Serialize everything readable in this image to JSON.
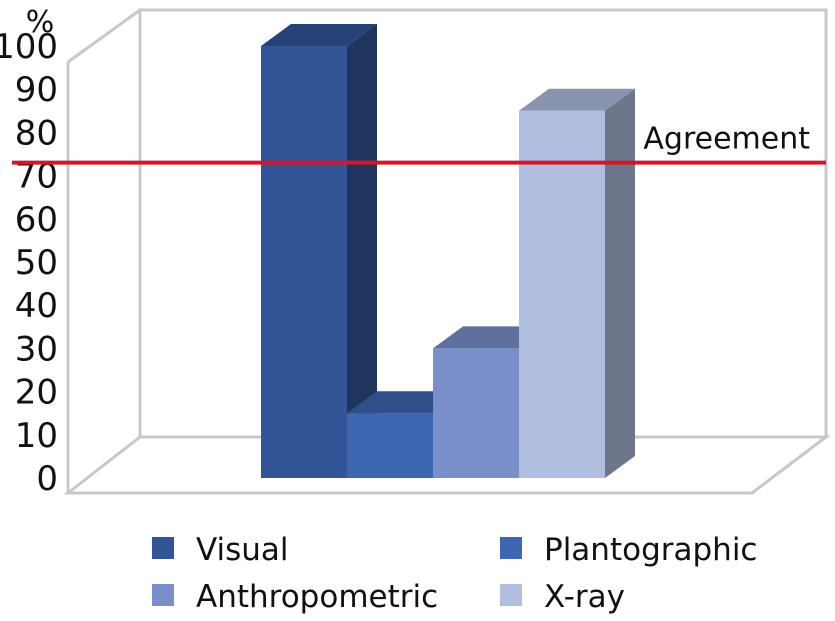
{
  "chart_data": {
    "type": "bar",
    "y_unit": "%",
    "ylim": [
      0,
      100
    ],
    "yticks": [
      0,
      10,
      20,
      30,
      40,
      50,
      60,
      70,
      80,
      90,
      100
    ],
    "categories": [
      "Visual",
      "Plantographic",
      "Anthropometric",
      "X-ray"
    ],
    "values": [
      100,
      15,
      30,
      85
    ],
    "colors": [
      "#325597",
      "#3d67b1",
      "#7a8fca",
      "#b0bee0"
    ],
    "reference_line": {
      "value": 73,
      "label": "Agreement",
      "color": "#d0182c"
    },
    "grid": false,
    "style": "3d-columns",
    "legend_position": "bottom"
  }
}
